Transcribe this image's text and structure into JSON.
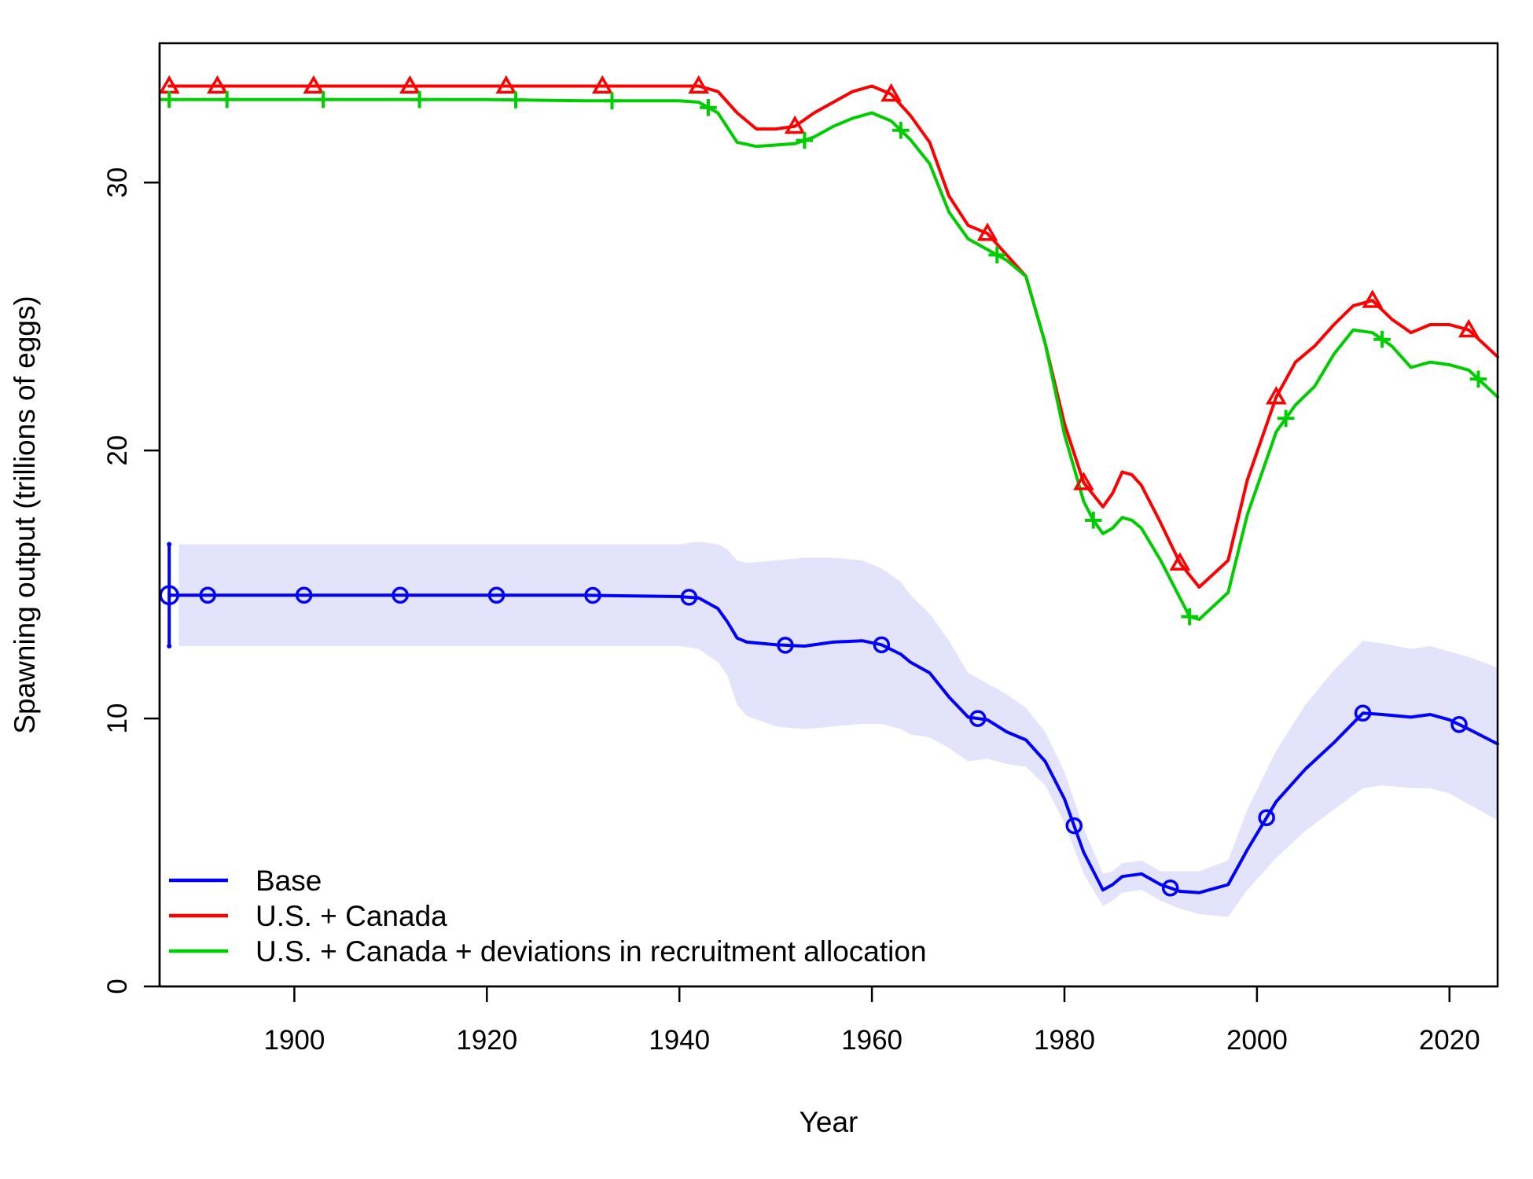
{
  "chart_data": {
    "type": "line",
    "title": "",
    "xlabel": "Year",
    "ylabel": "Spawning output (trillions of eggs)",
    "xlim": [
      1886,
      2025
    ],
    "ylim": [
      0,
      35.2
    ],
    "x_ticks": [
      1900,
      1920,
      1940,
      1960,
      1980,
      2000,
      2020
    ],
    "y_ticks": [
      0,
      10,
      20,
      30
    ],
    "grid": false,
    "legend_position": "bottom-left",
    "series": [
      {
        "name": "Base",
        "color": "#0000ff",
        "marker": "circle",
        "marker_years": [
          1891,
          1901,
          1911,
          1921,
          1931,
          1941,
          1951,
          1961,
          1971,
          1981,
          1991,
          2001,
          2011,
          2021
        ],
        "x": [
          1887,
          1890,
          1900,
          1910,
          1920,
          1930,
          1940,
          1942,
          1944,
          1945,
          1946,
          1947,
          1950,
          1953,
          1956,
          1959,
          1961,
          1963,
          1964,
          1966,
          1968,
          1970,
          1972,
          1974,
          1976,
          1978,
          1980,
          1982,
          1984,
          1985,
          1986,
          1988,
          1990,
          1992,
          1994,
          1997,
          1999,
          2002,
          2005,
          2008,
          2011,
          2013,
          2016,
          2018,
          2020,
          2022,
          2025
        ],
        "values": [
          14.6,
          14.6,
          14.6,
          14.6,
          14.6,
          14.6,
          14.55,
          14.5,
          14.1,
          13.6,
          13.0,
          12.85,
          12.75,
          12.7,
          12.85,
          12.9,
          12.75,
          12.4,
          12.1,
          11.7,
          10.8,
          10.05,
          9.95,
          9.5,
          9.2,
          8.4,
          7.0,
          5.0,
          3.6,
          3.8,
          4.1,
          4.2,
          3.8,
          3.55,
          3.5,
          3.8,
          5.1,
          6.9,
          8.1,
          9.1,
          10.2,
          10.15,
          10.05,
          10.15,
          9.95,
          9.6,
          9.05
        ],
        "ci_upper": [
          16.5,
          16.5,
          16.5,
          16.5,
          16.5,
          16.5,
          16.5,
          16.6,
          16.5,
          16.3,
          15.9,
          15.8,
          15.9,
          16.0,
          16.0,
          15.9,
          15.6,
          15.1,
          14.6,
          13.9,
          12.9,
          11.7,
          11.3,
          10.9,
          10.4,
          9.5,
          8.0,
          5.9,
          4.2,
          4.3,
          4.6,
          4.7,
          4.3,
          4.3,
          4.3,
          4.7,
          6.6,
          8.8,
          10.5,
          11.8,
          12.9,
          12.8,
          12.6,
          12.7,
          12.5,
          12.3,
          11.9
        ],
        "ci_lower": [
          12.7,
          12.7,
          12.7,
          12.7,
          12.7,
          12.7,
          12.7,
          12.6,
          12.1,
          11.6,
          10.5,
          10.1,
          9.7,
          9.6,
          9.7,
          9.8,
          9.8,
          9.6,
          9.4,
          9.3,
          8.9,
          8.4,
          8.5,
          8.3,
          8.2,
          7.5,
          6.1,
          4.2,
          3.0,
          3.2,
          3.5,
          3.6,
          3.2,
          2.9,
          2.7,
          2.6,
          3.6,
          4.8,
          5.8,
          6.6,
          7.4,
          7.5,
          7.4,
          7.4,
          7.2,
          6.8,
          6.2
        ],
        "error_bar": {
          "x": 1887,
          "value": 14.6,
          "lower": 12.7,
          "upper": 16.5
        }
      },
      {
        "name": "U.S. + Canada",
        "color": "#ff0000",
        "marker": "triangle",
        "marker_years": [
          1887,
          1892,
          1902,
          1912,
          1922,
          1932,
          1942,
          1952,
          1962,
          1972,
          1982,
          1992,
          2002,
          2012,
          2022
        ],
        "x": [
          1887,
          1890,
          1900,
          1910,
          1920,
          1930,
          1940,
          1942,
          1944,
          1946,
          1948,
          1950,
          1952,
          1954,
          1956,
          1958,
          1960,
          1962,
          1964,
          1966,
          1968,
          1970,
          1972,
          1974,
          1976,
          1978,
          1980,
          1982,
          1984,
          1985,
          1986,
          1987,
          1988,
          1990,
          1992,
          1994,
          1997,
          1999,
          2002,
          2004,
          2006,
          2008,
          2010,
          2012,
          2014,
          2016,
          2018,
          2020,
          2022,
          2025
        ],
        "values": [
          33.6,
          33.6,
          33.6,
          33.6,
          33.6,
          33.6,
          33.6,
          33.6,
          33.4,
          32.6,
          32.0,
          32.0,
          32.1,
          32.6,
          33.0,
          33.4,
          33.6,
          33.3,
          32.5,
          31.5,
          29.5,
          28.4,
          28.1,
          27.3,
          26.5,
          24.0,
          21.0,
          18.8,
          17.9,
          18.4,
          19.2,
          19.1,
          18.7,
          17.3,
          15.8,
          14.9,
          15.9,
          18.9,
          22.0,
          23.3,
          23.9,
          24.7,
          25.4,
          25.6,
          24.9,
          24.4,
          24.7,
          24.7,
          24.5,
          23.5
        ]
      },
      {
        "name": "U.S. + Canada + deviations in recruitment allocation",
        "color": "#00cd00",
        "marker": "plus",
        "marker_years": [
          1887,
          1893,
          1903,
          1913,
          1923,
          1933,
          1943,
          1953,
          1963,
          1973,
          1983,
          1993,
          2003,
          2013,
          2023
        ],
        "x": [
          1887,
          1890,
          1900,
          1910,
          1920,
          1930,
          1940,
          1942,
          1944,
          1946,
          1948,
          1950,
          1952,
          1954,
          1956,
          1958,
          1960,
          1962,
          1964,
          1966,
          1968,
          1970,
          1972,
          1974,
          1976,
          1978,
          1980,
          1982,
          1983,
          1984,
          1985,
          1986,
          1987,
          1988,
          1990,
          1992,
          1993,
          1994,
          1997,
          1999,
          2002,
          2004,
          2006,
          2008,
          2010,
          2012,
          2014,
          2016,
          2018,
          2020,
          2022,
          2025
        ],
        "values": [
          33.1,
          33.1,
          33.1,
          33.1,
          33.1,
          33.05,
          33.05,
          33.0,
          32.6,
          31.5,
          31.35,
          31.4,
          31.45,
          31.7,
          32.1,
          32.4,
          32.6,
          32.3,
          31.6,
          30.7,
          28.9,
          27.9,
          27.5,
          27.1,
          26.5,
          24.0,
          20.6,
          18.1,
          17.4,
          16.9,
          17.1,
          17.5,
          17.4,
          17.1,
          15.9,
          14.5,
          13.8,
          13.7,
          14.7,
          17.6,
          20.7,
          21.7,
          22.4,
          23.6,
          24.5,
          24.4,
          23.9,
          23.1,
          23.3,
          23.2,
          23.0,
          22.0
        ]
      }
    ]
  }
}
